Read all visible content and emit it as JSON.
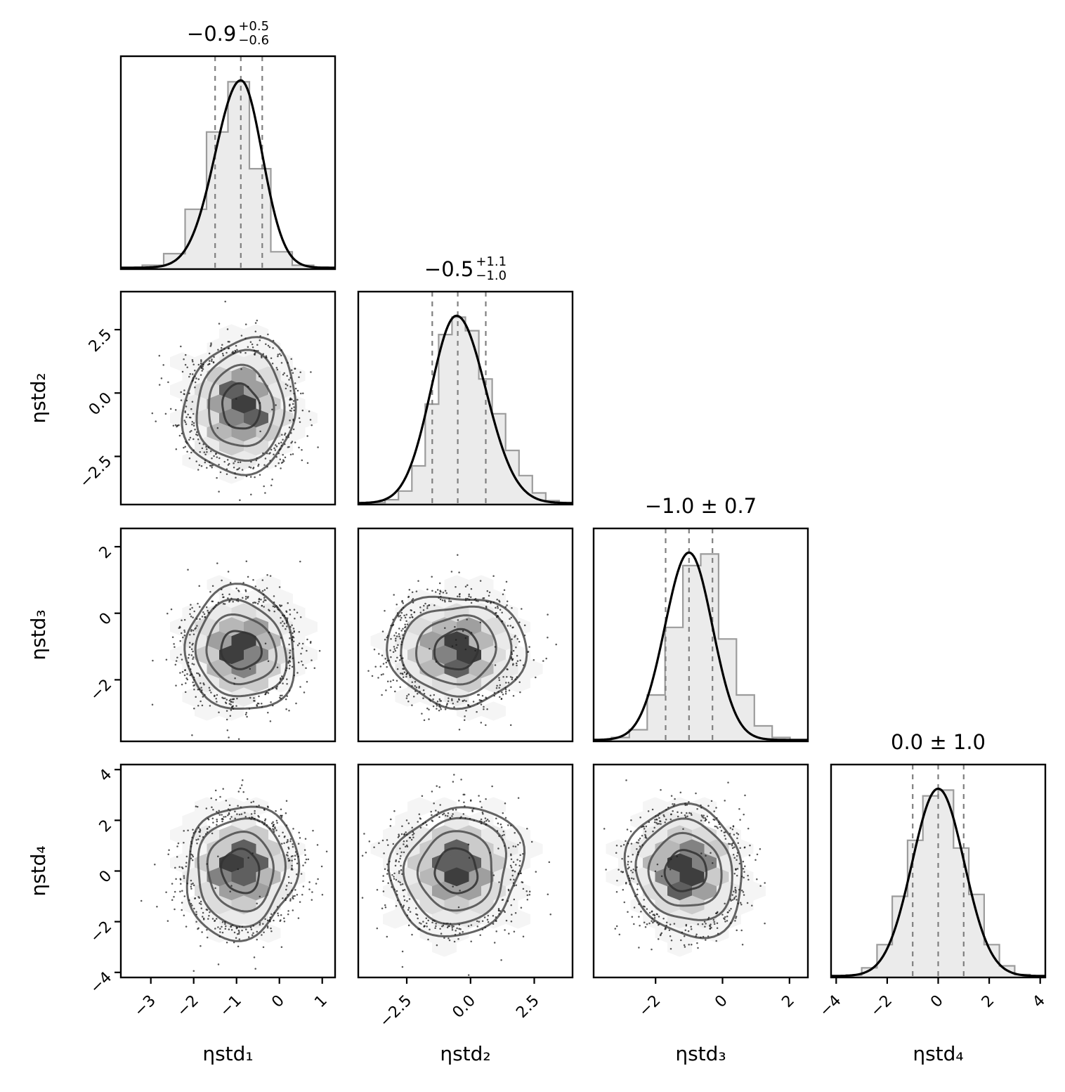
{
  "figure": {
    "background": "#ffffff",
    "kind": "corner-plot (posterior pair plot), 4 parameters"
  },
  "chart_data": {
    "type": "corner",
    "n_params": 4,
    "legend": "none",
    "grid": false,
    "parameters": [
      {
        "label": "ηstd₁",
        "title": {
          "type": "asymmetric",
          "median": "−0.9",
          "upper": "+0.5",
          "lower": "−0.6"
        },
        "xlim": [
          -3.7,
          1.3
        ],
        "ticks": {
          "values": [
            -3,
            -2,
            -1,
            0,
            1
          ],
          "labels": [
            "−3",
            "−2",
            "−1",
            "0",
            "1"
          ]
        },
        "quantiles": [
          -1.5,
          -0.9,
          -0.4
        ],
        "mean": -0.9,
        "sigma": 0.55,
        "kde": {
          "mean": -0.9,
          "sigma_left": 0.6,
          "sigma_right": 0.5
        },
        "hist_bins": [
          0.005,
          0.02,
          0.08,
          0.31,
          0.71,
          0.97,
          0.52,
          0.09,
          0.02,
          0.005
        ]
      },
      {
        "label": "ηstd₂",
        "title": {
          "type": "asymmetric",
          "median": "−0.5",
          "upper": "+1.1",
          "lower": "−1.0"
        },
        "xlim": [
          -4.4,
          4.0
        ],
        "ticks": {
          "values": [
            -2.5,
            0.0,
            2.5
          ],
          "labels": [
            "−2.5",
            "0.0",
            "2.5"
          ]
        },
        "quantiles": [
          -1.5,
          -0.5,
          0.6
        ],
        "mean": -0.55,
        "sigma": 1.05,
        "kde": {
          "mean": -0.55,
          "sigma_left": 1.0,
          "sigma_right": 1.15
        },
        "hist_bins": [
          0.004,
          0.01,
          0.025,
          0.07,
          0.2,
          0.52,
          0.88,
          0.97,
          0.9,
          0.65,
          0.47,
          0.28,
          0.15,
          0.06,
          0.02,
          0.007
        ]
      },
      {
        "label": "ηstd₃",
        "title": {
          "type": "symmetric",
          "text": "−1.0 ± 0.7"
        },
        "xlim": [
          -3.85,
          2.55
        ],
        "ticks": {
          "values": [
            -2,
            0,
            2
          ],
          "labels": [
            "−2",
            "0",
            "2"
          ]
        },
        "quantiles": [
          -1.7,
          -1.0,
          -0.3
        ],
        "mean": -1.1,
        "sigma": 0.72,
        "kde": {
          "mean": -1.0,
          "sigma_left": 0.72,
          "sigma_right": 0.7
        },
        "hist_bins": [
          0.004,
          0.02,
          0.06,
          0.24,
          0.59,
          0.91,
          0.97,
          0.53,
          0.24,
          0.08,
          0.02,
          0.005
        ]
      },
      {
        "label": "ηstd₄",
        "title": {
          "type": "symmetric",
          "text": "0.0 ± 1.0"
        },
        "xlim": [
          -4.2,
          4.2
        ],
        "ticks": {
          "values": [
            -4,
            -2,
            0,
            2,
            4
          ],
          "labels": [
            "−4",
            "−2",
            "0",
            "2",
            "4"
          ]
        },
        "quantiles": [
          -1.0,
          0.0,
          1.0
        ],
        "mean": 0.0,
        "sigma": 1.03,
        "kde": {
          "mean": 0.0,
          "sigma_left": 1.02,
          "sigma_right": 1.02
        },
        "hist_bins": [
          0.004,
          0.012,
          0.05,
          0.17,
          0.42,
          0.71,
          0.94,
          0.97,
          0.67,
          0.43,
          0.17,
          0.06,
          0.015,
          0.005
        ]
      }
    ],
    "style": {
      "hist_fill": "#ebebeb",
      "hist_edge": "#9c9c9c",
      "kde_color": "#000000",
      "quantile_color": "#808080",
      "contour_color": "#4f4f4f",
      "contour_inner": "#333333",
      "scatter_color": "#1e1e1e",
      "border_color": "#000000",
      "text_color": "#000000",
      "hex_shades": [
        "#f5f5f5",
        "#eaeaea",
        "#dcdcdc",
        "#cbcbcb",
        "#b7b7b7",
        "#9f9f9f",
        "#828282",
        "#5f5f5f",
        "#3e3e3e"
      ]
    }
  }
}
